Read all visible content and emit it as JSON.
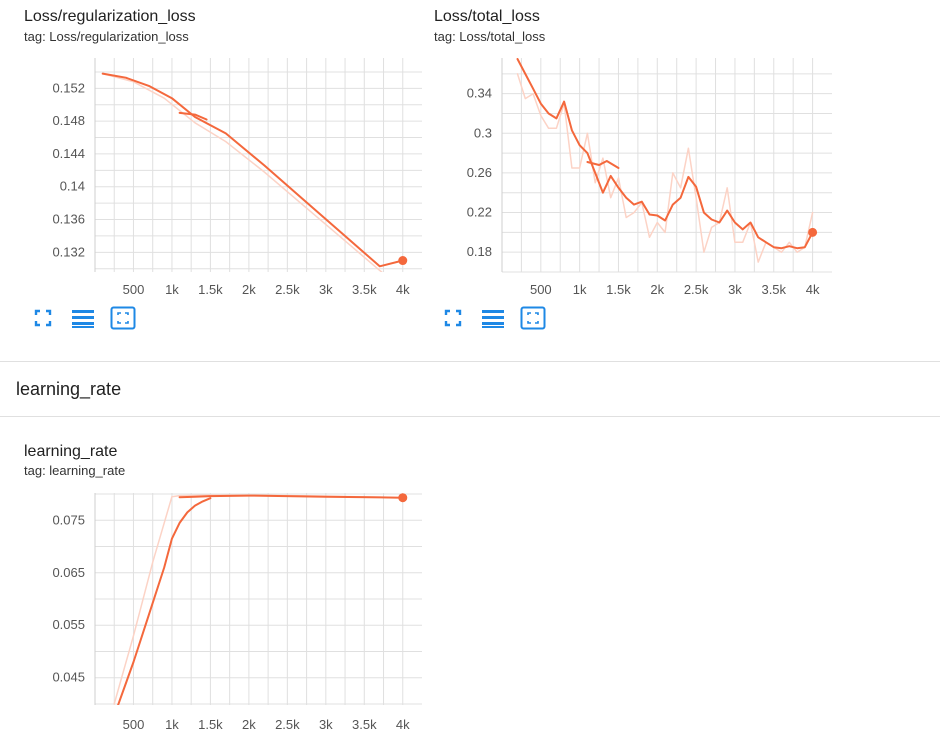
{
  "colors": {
    "accent": "#f4683c",
    "raw": "#fcd3c6",
    "grid": "#e0e0e0",
    "icon": "#1e88e5"
  },
  "icons": [
    "fullscreen-icon",
    "toggle-log-icon",
    "fit-domain-icon"
  ],
  "section": {
    "title": "learning_rate"
  },
  "cards": [
    {
      "title": "Loss/regularization_loss",
      "tag": "tag: Loss/regularization_loss"
    },
    {
      "title": "Loss/total_loss",
      "tag": "tag: Loss/total_loss"
    },
    {
      "title": "learning_rate",
      "tag": "tag: learning_rate"
    }
  ],
  "chart_data": [
    {
      "type": "line",
      "title": "Loss/regularization_loss",
      "xlim": [
        0,
        4250
      ],
      "ylim": [
        0.1296,
        0.1557
      ],
      "xticks": [
        500,
        1000,
        1500,
        2000,
        2500,
        3000,
        3500,
        4000
      ],
      "xtick_labels": [
        "500",
        "1k",
        "1.5k",
        "2k",
        "2.5k",
        "3k",
        "3.5k",
        "4k"
      ],
      "yticks": [
        0.132,
        0.136,
        0.14,
        0.144,
        0.148,
        0.152
      ],
      "ytick_labels": [
        "0.132",
        "0.136",
        "0.14",
        "0.144",
        "0.148",
        "0.152"
      ],
      "series": [
        {
          "role": "raw",
          "x": [
            100,
            500,
            900,
            1300,
            1700,
            2200,
            2700,
            3200,
            3700,
            4000
          ],
          "y": [
            0.1538,
            0.1528,
            0.1508,
            0.1478,
            0.1455,
            0.1418,
            0.1378,
            0.1338,
            0.1298,
            0.1275
          ]
        },
        {
          "role": "smoothed",
          "x": [
            100,
            400,
            700,
            1000,
            1300,
            1700,
            2200,
            2700,
            3200,
            3700,
            4000
          ],
          "y": [
            0.1538,
            0.1533,
            0.1523,
            0.1508,
            0.1485,
            0.1465,
            0.1426,
            0.1385,
            0.1344,
            0.1303,
            0.131
          ]
        },
        {
          "role": "smoothed",
          "x": [
            1100,
            1300,
            1450
          ],
          "y": [
            0.149,
            0.1488,
            0.1482
          ]
        }
      ],
      "endpoint": {
        "x": 4000,
        "y": 0.131
      }
    },
    {
      "type": "line",
      "title": "Loss/total_loss",
      "xlim": [
        0,
        4250
      ],
      "ylim": [
        0.16,
        0.376
      ],
      "xticks": [
        500,
        1000,
        1500,
        2000,
        2500,
        3000,
        3500,
        4000
      ],
      "xtick_labels": [
        "500",
        "1k",
        "1.5k",
        "2k",
        "2.5k",
        "3k",
        "3.5k",
        "4k"
      ],
      "yticks": [
        0.18,
        0.22,
        0.26,
        0.3,
        0.34
      ],
      "ytick_labels": [
        "0.18",
        "0.22",
        "0.26",
        "0.3",
        "0.34"
      ],
      "series": [
        {
          "role": "raw",
          "x": [
            200,
            300,
            400,
            500,
            600,
            700,
            800,
            900,
            1000,
            1100,
            1200,
            1300,
            1400,
            1500,
            1600,
            1700,
            1800,
            1900,
            2000,
            2100,
            2200,
            2300,
            2400,
            2500,
            2600,
            2700,
            2800,
            2900,
            3000,
            3100,
            3200,
            3300,
            3400,
            3500,
            3600,
            3700,
            3800,
            3900,
            4000
          ],
          "y": [
            0.36,
            0.335,
            0.34,
            0.318,
            0.305,
            0.305,
            0.33,
            0.265,
            0.265,
            0.3,
            0.25,
            0.275,
            0.235,
            0.255,
            0.215,
            0.22,
            0.23,
            0.195,
            0.21,
            0.2,
            0.26,
            0.245,
            0.285,
            0.235,
            0.18,
            0.205,
            0.21,
            0.245,
            0.19,
            0.19,
            0.21,
            0.17,
            0.19,
            0.185,
            0.18,
            0.19,
            0.18,
            0.185,
            0.22
          ]
        },
        {
          "role": "smoothed",
          "x": [
            200,
            300,
            400,
            500,
            600,
            700,
            800,
            900,
            1000,
            1100,
            1200,
            1300,
            1400,
            1500,
            1600,
            1700,
            1800,
            1900,
            2000,
            2100,
            2200,
            2300,
            2400,
            2500,
            2600,
            2700,
            2800,
            2900,
            3000,
            3100,
            3200,
            3300,
            3400,
            3500,
            3600,
            3700,
            3800,
            3900,
            4000
          ],
          "y": [
            0.375,
            0.36,
            0.345,
            0.33,
            0.32,
            0.315,
            0.332,
            0.303,
            0.288,
            0.28,
            0.26,
            0.24,
            0.257,
            0.245,
            0.235,
            0.228,
            0.231,
            0.218,
            0.217,
            0.212,
            0.228,
            0.235,
            0.256,
            0.246,
            0.22,
            0.213,
            0.21,
            0.222,
            0.21,
            0.203,
            0.21,
            0.195,
            0.19,
            0.185,
            0.184,
            0.186,
            0.184,
            0.185,
            0.2
          ]
        },
        {
          "role": "smoothed",
          "x": [
            1100,
            1250,
            1350,
            1500
          ],
          "y": [
            0.271,
            0.268,
            0.272,
            0.265
          ]
        }
      ],
      "endpoint": {
        "x": 4000,
        "y": 0.2
      }
    },
    {
      "type": "line",
      "title": "learning_rate",
      "xlim": [
        0,
        4250
      ],
      "ylim": [
        0.0398,
        0.0802
      ],
      "xticks": [
        500,
        1000,
        1500,
        2000,
        2500,
        3000,
        3500,
        4000
      ],
      "xtick_labels": [
        "500",
        "1k",
        "1.5k",
        "2k",
        "2.5k",
        "3k",
        "3.5k",
        "4k"
      ],
      "yticks": [
        0.045,
        0.055,
        0.065,
        0.075
      ],
      "ytick_labels": [
        "0.045",
        "0.055",
        "0.065",
        "0.075"
      ],
      "series": [
        {
          "role": "raw",
          "x": [
            250,
            500,
            750,
            1000,
            1100,
            1500,
            2000,
            3000,
            4000
          ],
          "y": [
            0.04,
            0.053,
            0.067,
            0.0795,
            0.0797,
            0.0798,
            0.0798,
            0.0796,
            0.0793
          ]
        },
        {
          "role": "smoothed",
          "x": [
            300,
            500,
            700,
            900,
            1000,
            1100,
            1200,
            1300,
            1400,
            1500
          ],
          "y": [
            0.0398,
            0.048,
            0.057,
            0.066,
            0.0715,
            0.0745,
            0.0765,
            0.0778,
            0.0786,
            0.0792
          ]
        },
        {
          "role": "smoothed",
          "x": [
            1100,
            1300,
            1500,
            2000,
            3000,
            4000
          ],
          "y": [
            0.0794,
            0.0795,
            0.0796,
            0.0797,
            0.0795,
            0.0793
          ]
        }
      ],
      "endpoint": {
        "x": 4000,
        "y": 0.0793
      }
    }
  ]
}
